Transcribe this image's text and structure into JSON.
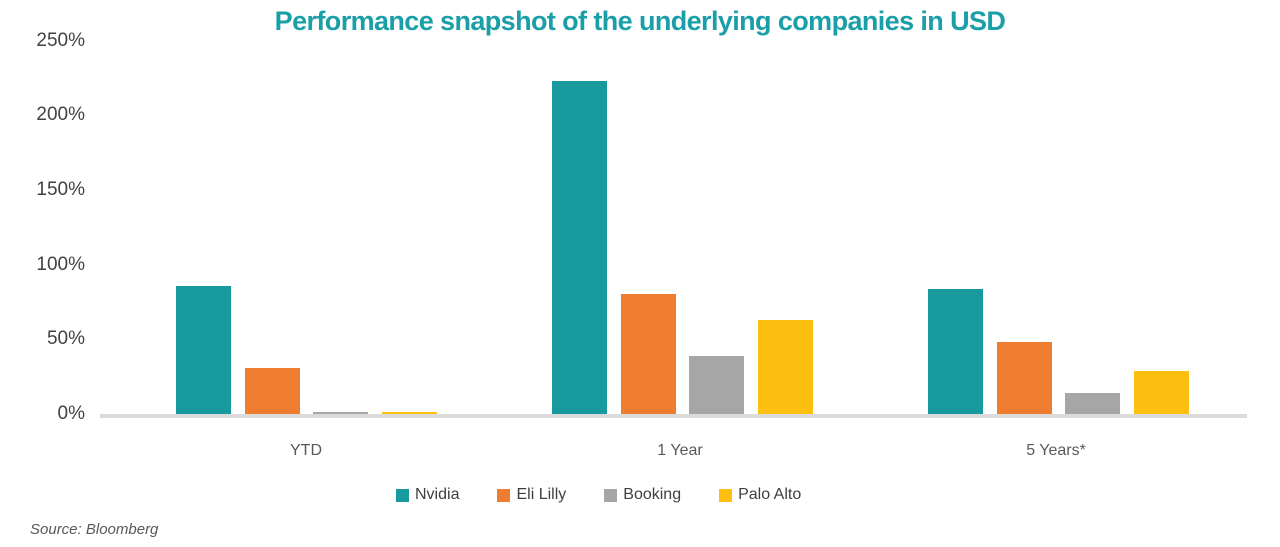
{
  "chart_data": {
    "type": "bar",
    "title": "Performance snapshot of the underlying companies in USD",
    "title_color": "#1A9FA8",
    "categories": [
      "YTD",
      "1 Year",
      "5 Years*"
    ],
    "series": [
      {
        "name": "Nvidia",
        "color": "#17999E",
        "values": [
          86,
          223,
          84
        ]
      },
      {
        "name": "Eli Lilly",
        "color": "#EF7D2F",
        "values": [
          31,
          80,
          48
        ]
      },
      {
        "name": "Booking",
        "color": "#A6A6A6",
        "values": [
          1.5,
          39,
          14
        ]
      },
      {
        "name": "Palo Alto",
        "color": "#FDC011",
        "values": [
          1.5,
          63,
          29
        ]
      }
    ],
    "unit": "%",
    "y_ticks": [
      "250%",
      "200%",
      "150%",
      "100%",
      "50%",
      "0%"
    ],
    "y_tick_values": [
      250,
      200,
      150,
      100,
      50,
      0
    ],
    "ylim": [
      0,
      250
    ],
    "grid": false,
    "legend_position": "bottom",
    "axis_line_color": "#DBDBDB",
    "source": "Source: Bloomberg"
  }
}
